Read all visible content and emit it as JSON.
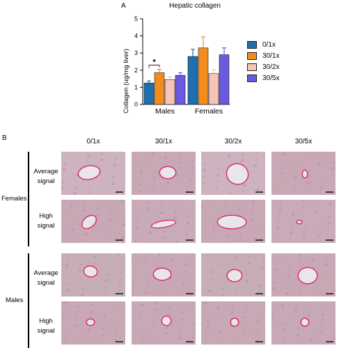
{
  "figure": {
    "panel_a_label": "A",
    "panel_b_label": "B"
  },
  "chart_data": {
    "type": "bar",
    "title": "Hepatic collagen",
    "ylabel": "Collagen (ug/mg liver)",
    "xlabel": "",
    "categories": [
      "Males",
      "Females"
    ],
    "ylim": [
      0,
      5
    ],
    "yticks": [
      0,
      1,
      2,
      3,
      4,
      5
    ],
    "grid": false,
    "legend_position": "right",
    "series": [
      {
        "name": "0/1x",
        "color": "#1f6fb0",
        "values": [
          1.25,
          2.8
        ],
        "errors": [
          0.12,
          0.42
        ]
      },
      {
        "name": "30/1x",
        "color": "#f28c1e",
        "values": [
          1.85,
          3.3
        ],
        "errors": [
          0.2,
          0.65
        ]
      },
      {
        "name": "30/2x",
        "color": "#f6c3b8",
        "values": [
          1.45,
          1.8
        ],
        "errors": [
          0.15,
          0.22
        ]
      },
      {
        "name": "30/5x",
        "color": "#6a5ae0",
        "values": [
          1.7,
          2.9
        ],
        "errors": [
          0.15,
          0.4
        ]
      }
    ],
    "annotations": [
      {
        "text": "*",
        "category": "Males",
        "between": [
          "0/1x",
          "30/1x"
        ]
      }
    ]
  },
  "micrographs": {
    "columns": [
      "0/1x",
      "30/1x",
      "30/2x",
      "30/5x"
    ],
    "groups": [
      {
        "label": "Females",
        "rows": [
          "Average signal",
          "High signal"
        ]
      },
      {
        "label": "Males",
        "rows": [
          "Average signal",
          "High signal"
        ]
      }
    ],
    "tissue_color": "#c9a8b6",
    "vessel_stain_color": "#d8306a"
  }
}
